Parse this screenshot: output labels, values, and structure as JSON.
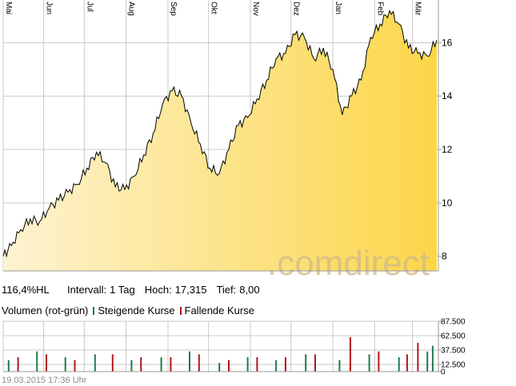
{
  "stats": {
    "performance": "116,4%HL",
    "interval_label": "Intervall:",
    "interval_value": "1 Tag",
    "high_label": "Hoch:",
    "high_value": "17,315",
    "low_label": "Tief:",
    "low_value": "8,00"
  },
  "volume_legend": {
    "title": "Volumen (rot-grün)",
    "rising": "Steigende Kurse",
    "falling": "Fallende Kurse"
  },
  "watermark": {
    "text": ".comdirect"
  },
  "footer": {
    "timestamp": "19.03.2015 17:36 Uhr"
  },
  "colors": {
    "line": "#000000",
    "area_light": "#fdf3d2",
    "area_dark": "#fcd648",
    "rising": "#1f7a4d",
    "falling": "#b01818",
    "grid": "#c8c8c8",
    "watermark": "#cdb98a"
  },
  "chart_data": [
    {
      "type": "area",
      "x_labels": [
        "Mai",
        "Jun",
        "Jul",
        "Aug",
        "Sep",
        "Okt",
        "Nov",
        "Dez",
        "Jan",
        "Feb",
        "Mär"
      ],
      "y_ticks": [
        8,
        10,
        12,
        14,
        16
      ],
      "ylim": [
        7.45,
        17.6
      ],
      "grid": true,
      "x": [
        "2014-05-02",
        "2014-05-08",
        "2014-05-15",
        "2014-05-22",
        "2014-05-29",
        "2014-06-05",
        "2014-06-12",
        "2014-06-19",
        "2014-06-26",
        "2014-07-03",
        "2014-07-10",
        "2014-07-17",
        "2014-07-24",
        "2014-07-31",
        "2014-08-07",
        "2014-08-14",
        "2014-08-21",
        "2014-08-28",
        "2014-09-04",
        "2014-09-11",
        "2014-09-18",
        "2014-09-25",
        "2014-10-02",
        "2014-10-09",
        "2014-10-16",
        "2014-10-23",
        "2014-10-30",
        "2014-11-06",
        "2014-11-13",
        "2014-11-20",
        "2014-11-27",
        "2014-12-04",
        "2014-12-11",
        "2014-12-18",
        "2014-12-25",
        "2015-01-01",
        "2015-01-08",
        "2015-01-15",
        "2015-01-22",
        "2015-01-29",
        "2015-02-05",
        "2015-02-12",
        "2015-02-19",
        "2015-02-26",
        "2015-03-05",
        "2015-03-12",
        "2015-03-19"
      ],
      "values": [
        8.0,
        8.4,
        9.0,
        9.4,
        9.3,
        9.8,
        10.1,
        10.4,
        10.7,
        11.3,
        11.9,
        11.5,
        10.6,
        10.5,
        11.0,
        11.8,
        12.6,
        13.7,
        14.2,
        14.0,
        13.0,
        12.2,
        11.3,
        11.1,
        12.0,
        12.9,
        13.2,
        13.9,
        14.6,
        15.4,
        15.6,
        16.3,
        16.2,
        15.4,
        15.8,
        15.0,
        13.3,
        14.0,
        14.6,
        16.2,
        16.7,
        17.2,
        16.7,
        15.8,
        15.6,
        15.5,
        16.1
      ]
    },
    {
      "type": "bar",
      "y_ticks": [
        0,
        12500,
        37500,
        62500,
        87500
      ],
      "ylim": [
        0,
        87500
      ],
      "series": [
        {
          "name": "Steigende Kurse",
          "x": [
            "2014-05-06",
            "2014-05-27",
            "2014-06-17",
            "2014-07-09",
            "2014-08-05",
            "2014-08-27",
            "2014-09-17",
            "2014-10-09",
            "2014-10-30",
            "2014-11-20",
            "2014-12-12",
            "2015-01-06",
            "2015-01-28",
            "2015-02-19",
            "2015-03-12",
            "2015-03-16"
          ],
          "values": [
            20000,
            35000,
            25000,
            30000,
            20000,
            25000,
            35000,
            15000,
            25000,
            20000,
            30000,
            20000,
            30000,
            25000,
            35000,
            45000
          ]
        },
        {
          "name": "Fallende Kurse",
          "x": [
            "2014-05-13",
            "2014-06-03",
            "2014-06-24",
            "2014-07-22",
            "2014-08-12",
            "2014-09-03",
            "2014-09-24",
            "2014-10-16",
            "2014-11-06",
            "2014-11-27",
            "2014-12-19",
            "2015-01-14",
            "2015-02-04",
            "2015-02-25",
            "2015-03-05"
          ],
          "values": [
            25000,
            30000,
            20000,
            30000,
            25000,
            25000,
            30000,
            20000,
            25000,
            25000,
            30000,
            60000,
            35000,
            30000,
            50000
          ]
        }
      ]
    }
  ]
}
